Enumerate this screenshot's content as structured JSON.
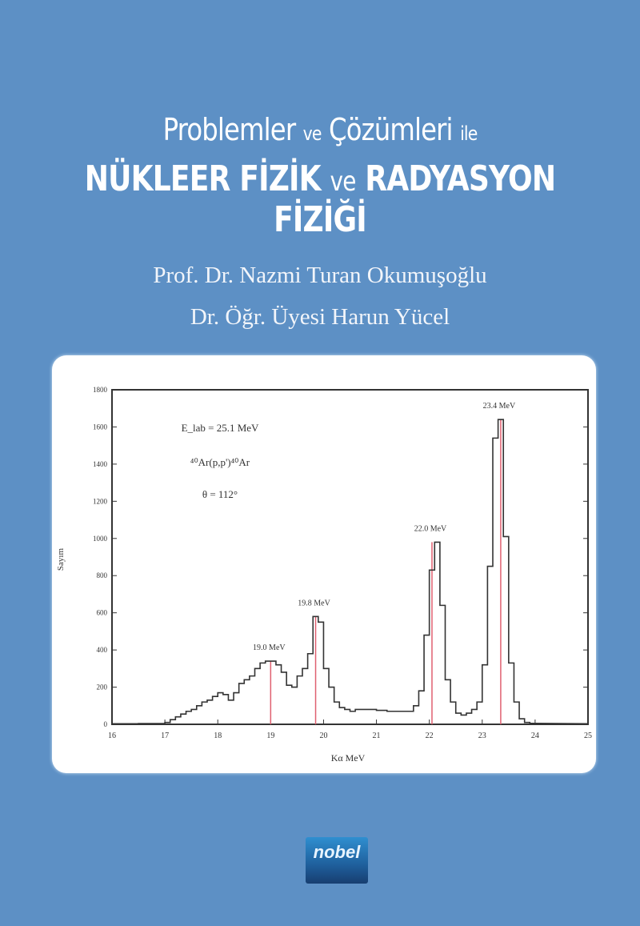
{
  "cover": {
    "title_line1_a": "Problemler ",
    "title_line1_b": "ve",
    "title_line1_c": " Çözümleri ",
    "title_line1_d": "ile",
    "title_line2_a": "NÜKLEER FİZİK ",
    "title_line2_b": "ve",
    "title_line2_c": " RADYASYON FİZİĞİ",
    "author1": "Prof. Dr. Nazmi Turan Okumuşoğlu",
    "author2": "Dr. Öğr. Üyesi Harun Yücel",
    "publisher_logo": "nobel",
    "background_color": "#5d90c5"
  },
  "chart_data": {
    "type": "line",
    "style": "step-histogram",
    "xlabel": "Kα MeV",
    "ylabel": "Sayım",
    "xlim": [
      16,
      25
    ],
    "ylim": [
      0,
      1800
    ],
    "xticks": [
      16,
      17,
      18,
      19,
      20,
      21,
      22,
      23,
      24,
      25
    ],
    "yticks": [
      0,
      200,
      400,
      600,
      800,
      1000,
      1200,
      1400,
      1600,
      1800
    ],
    "grid": false,
    "annotations": [
      "E_lab = 25.1 MeV",
      "⁴⁰Ar(p,p')⁴⁰Ar",
      "θ = 112°"
    ],
    "peaks": [
      {
        "x": 19.0,
        "label": "19.0 MeV"
      },
      {
        "x": 19.85,
        "label": "19.8 MeV"
      },
      {
        "x": 22.05,
        "label": "22.0 MeV"
      },
      {
        "x": 23.35,
        "label": "23.4 MeV"
      }
    ],
    "peak_line_color": "#e06070",
    "bin_width": 0.1,
    "x": [
      16.0,
      16.5,
      17.0,
      17.1,
      17.2,
      17.3,
      17.4,
      17.5,
      17.6,
      17.7,
      17.8,
      17.9,
      18.0,
      18.1,
      18.2,
      18.3,
      18.4,
      18.5,
      18.6,
      18.7,
      18.8,
      18.9,
      19.0,
      19.1,
      19.2,
      19.3,
      19.4,
      19.5,
      19.6,
      19.7,
      19.8,
      19.9,
      20.0,
      20.1,
      20.2,
      20.3,
      20.4,
      20.5,
      20.6,
      21.0,
      21.2,
      21.6,
      21.7,
      21.8,
      21.9,
      22.0,
      22.1,
      22.2,
      22.3,
      22.4,
      22.5,
      22.6,
      22.7,
      22.8,
      22.9,
      23.0,
      23.1,
      23.2,
      23.3,
      23.4,
      23.5,
      23.6,
      23.7,
      23.8,
      23.9
    ],
    "values": [
      3,
      4,
      10,
      25,
      40,
      55,
      70,
      80,
      100,
      120,
      130,
      150,
      170,
      160,
      130,
      170,
      220,
      240,
      260,
      300,
      330,
      340,
      340,
      320,
      280,
      210,
      200,
      260,
      300,
      380,
      580,
      550,
      300,
      200,
      120,
      90,
      80,
      70,
      80,
      75,
      70,
      70,
      100,
      180,
      480,
      830,
      980,
      640,
      240,
      120,
      60,
      50,
      60,
      80,
      120,
      320,
      850,
      1540,
      1640,
      1010,
      330,
      120,
      30,
      10,
      5
    ]
  }
}
